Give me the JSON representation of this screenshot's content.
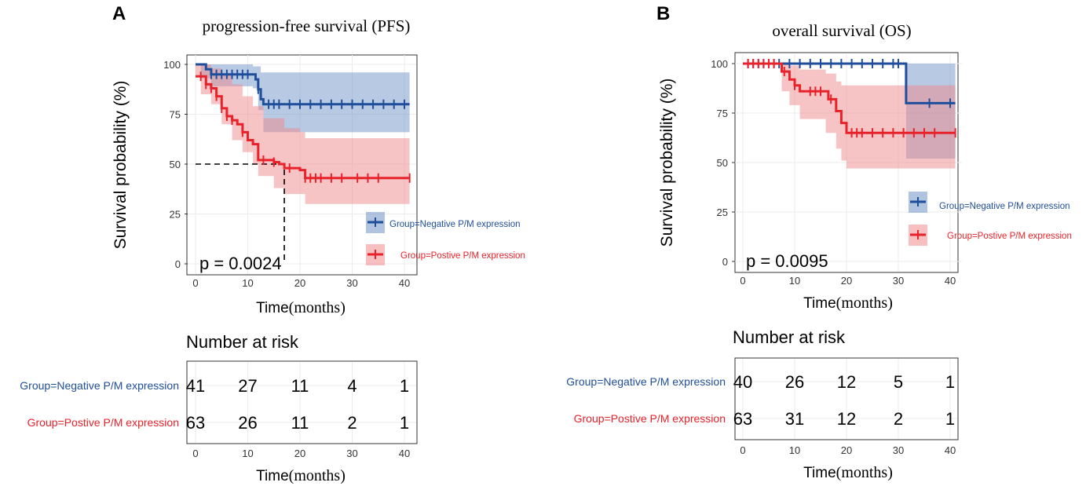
{
  "panels": [
    {
      "label": "A",
      "title": "progression-free survival (PFS)",
      "ylabel": "Survival probability (%)",
      "xlabel_prefix": "Time",
      "xlabel_suffix": "(months)",
      "p_value": "p = 0.0024",
      "legend": [
        {
          "text": "Group=Negative P/M expression",
          "color": "#1f4e9a"
        },
        {
          "text": "Group=Postive P/M expression",
          "color": "#e8222a"
        }
      ],
      "risk_title": "Number at risk",
      "risk_xlabel_prefix": "Time",
      "risk_xlabel_suffix": "(months)"
    },
    {
      "label": "B",
      "title": "overall survival (OS)",
      "ylabel": "Survival probability (%)",
      "xlabel_prefix": "Time",
      "xlabel_suffix": "(months)",
      "p_value": "p = 0.0095",
      "legend": [
        {
          "text": "Group=Negative P/M expression",
          "color": "#1f4e9a"
        },
        {
          "text": "Group=Postive P/M expression",
          "color": "#e8222a"
        }
      ],
      "risk_title": "Number at risk",
      "risk_xlabel_prefix": "Time",
      "risk_xlabel_suffix": "(months)"
    }
  ],
  "colors": {
    "negative": "#1f4e9a",
    "positive": "#e8222a",
    "negative_band": "#6f93c7",
    "positive_band": "#f08a8d",
    "grid": "#ebebeb",
    "frame": "#333333"
  },
  "chart_data": [
    {
      "type": "line",
      "title": "progression-free survival (PFS)",
      "xlabel": "Time(months)",
      "ylabel": "Survival probability (%)",
      "xlim": [
        0,
        41
      ],
      "ylim": [
        0,
        100
      ],
      "xticks": [
        0,
        10,
        20,
        30,
        40
      ],
      "yticks": [
        0,
        25,
        50,
        75,
        100
      ],
      "median_line": {
        "y": 50,
        "x": 17
      },
      "series": [
        {
          "name": "Group=Negative P/M expression",
          "color": "#1f4e9a",
          "steps": [
            [
              0,
              100
            ],
            [
              1,
              100
            ],
            [
              2,
              97.5
            ],
            [
              3,
              95
            ],
            [
              11,
              95
            ],
            [
              11.5,
              92.5
            ],
            [
              12,
              87.5
            ],
            [
              12.5,
              82.5
            ],
            [
              13,
              80
            ],
            [
              41,
              80
            ]
          ],
          "upper": [
            [
              0,
              100
            ],
            [
              3,
              100
            ],
            [
              11,
              99
            ],
            [
              12.5,
              96
            ],
            [
              41,
              96
            ]
          ],
          "lower": [
            [
              0,
              100
            ],
            [
              1,
              93
            ],
            [
              3,
              89
            ],
            [
              11,
              88
            ],
            [
              12,
              77
            ],
            [
              13,
              66
            ],
            [
              41,
              66
            ]
          ],
          "censors": [
            3,
            4,
            5,
            6,
            7,
            8,
            9,
            10,
            12,
            14,
            15,
            16,
            18,
            20,
            22,
            24,
            26,
            28,
            30,
            32,
            34,
            36,
            38,
            40
          ]
        },
        {
          "name": "Group=Postive P/M expression",
          "color": "#e8222a",
          "steps": [
            [
              0,
              94
            ],
            [
              1,
              94
            ],
            [
              2,
              90
            ],
            [
              3,
              88
            ],
            [
              4,
              84
            ],
            [
              5,
              78
            ],
            [
              6,
              74
            ],
            [
              7,
              72
            ],
            [
              8,
              70
            ],
            [
              9,
              66
            ],
            [
              10,
              62
            ],
            [
              11,
              60
            ],
            [
              12,
              52
            ],
            [
              15,
              51
            ],
            [
              16,
              50
            ],
            [
              17,
              48
            ],
            [
              20,
              47
            ],
            [
              21,
              43
            ],
            [
              41,
              43
            ]
          ],
          "upper": [
            [
              0,
              100
            ],
            [
              3,
              98
            ],
            [
              5,
              95
            ],
            [
              7,
              90
            ],
            [
              9,
              84
            ],
            [
              11,
              79
            ],
            [
              13,
              73
            ],
            [
              17,
              68
            ],
            [
              20,
              66
            ],
            [
              21,
              63
            ],
            [
              41,
              63
            ]
          ],
          "lower": [
            [
              0,
              94
            ],
            [
              1,
              85
            ],
            [
              3,
              80
            ],
            [
              5,
              70
            ],
            [
              7,
              62
            ],
            [
              9,
              56
            ],
            [
              11,
              50
            ],
            [
              12,
              44
            ],
            [
              15,
              38
            ],
            [
              17,
              35
            ],
            [
              21,
              30
            ],
            [
              41,
              30
            ]
          ],
          "censors": [
            1,
            2,
            3,
            4,
            5,
            6,
            7,
            9,
            13,
            15,
            18,
            21,
            22,
            23,
            24,
            26,
            28,
            31,
            33,
            35,
            41
          ]
        }
      ],
      "risk_table": {
        "times": [
          0,
          10,
          20,
          30,
          40
        ],
        "rows": [
          {
            "label": "Group=Negative P/M expression",
            "color": "#1f4e9a",
            "values": [
              "41",
              "27",
              "11",
              "4",
              "1"
            ]
          },
          {
            "label": "Group=Postive P/M expression",
            "color": "#e8222a",
            "values": [
              "63",
              "26",
              "11",
              "2",
              "1"
            ]
          }
        ]
      }
    },
    {
      "type": "line",
      "title": "overall survival (OS)",
      "xlabel": "Time(months)",
      "ylabel": "Survival probability (%)",
      "xlim": [
        0,
        41
      ],
      "ylim": [
        0,
        100
      ],
      "xticks": [
        0,
        10,
        20,
        30,
        40
      ],
      "yticks": [
        0,
        25,
        50,
        75,
        100
      ],
      "series": [
        {
          "name": "Group=Negative P/M expression",
          "color": "#1f4e9a",
          "steps": [
            [
              0,
              100
            ],
            [
              31,
              100
            ],
            [
              31.5,
              80
            ],
            [
              41,
              80
            ]
          ],
          "upper": [
            [
              0,
              100
            ],
            [
              41,
              100
            ]
          ],
          "lower": [
            [
              0,
              100
            ],
            [
              31,
              100
            ],
            [
              31.5,
              52
            ],
            [
              41,
              52
            ]
          ],
          "censors": [
            1,
            2,
            3,
            4,
            5,
            6,
            7,
            9,
            11,
            13,
            15,
            17,
            19,
            21,
            23,
            25,
            27,
            29,
            30,
            36,
            40
          ]
        },
        {
          "name": "Group=Postive P/M expression",
          "color": "#e8222a",
          "steps": [
            [
              0,
              100
            ],
            [
              7,
              100
            ],
            [
              7.5,
              96
            ],
            [
              9,
              92
            ],
            [
              10,
              89
            ],
            [
              11,
              86
            ],
            [
              16,
              86
            ],
            [
              16.5,
              82
            ],
            [
              18,
              76
            ],
            [
              19,
              70
            ],
            [
              20,
              65
            ],
            [
              41,
              65
            ]
          ],
          "upper": [
            [
              0,
              100
            ],
            [
              7,
              100
            ],
            [
              9,
              99
            ],
            [
              11,
              97
            ],
            [
              16,
              95
            ],
            [
              18,
              91
            ],
            [
              19,
              89
            ],
            [
              41,
              89
            ]
          ],
          "lower": [
            [
              0,
              100
            ],
            [
              7,
              100
            ],
            [
              7.5,
              86
            ],
            [
              9,
              79
            ],
            [
              11,
              72
            ],
            [
              16,
              65
            ],
            [
              18,
              57
            ],
            [
              19,
              51
            ],
            [
              20,
              47
            ],
            [
              41,
              47
            ]
          ],
          "censors": [
            1,
            2,
            3,
            4,
            5,
            6,
            8,
            10,
            13,
            14,
            15,
            17,
            21,
            22,
            23,
            25,
            27,
            29,
            31,
            33,
            35,
            37,
            41
          ]
        }
      ],
      "risk_table": {
        "times": [
          0,
          10,
          20,
          30,
          40
        ],
        "rows": [
          {
            "label": "Group=Negative P/M expression",
            "color": "#1f4e9a",
            "values": [
              "40",
              "26",
              "12",
              "5",
              "1"
            ]
          },
          {
            "label": "Group=Postive P/M expression",
            "color": "#e8222a",
            "values": [
              "63",
              "31",
              "12",
              "2",
              "1"
            ]
          }
        ]
      }
    }
  ]
}
